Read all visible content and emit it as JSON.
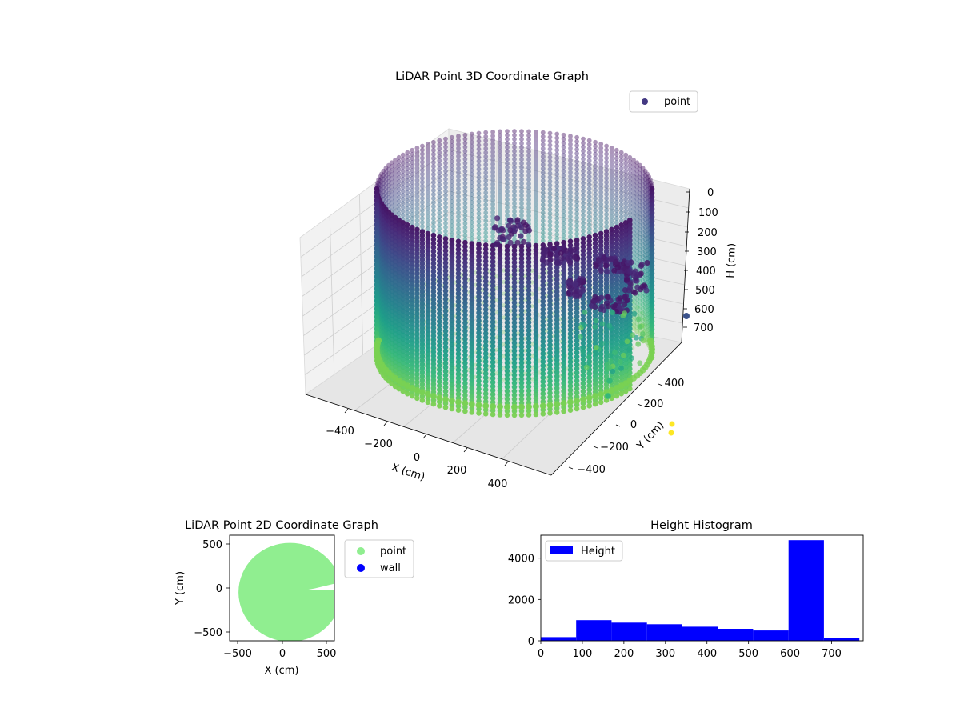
{
  "figure": {
    "chart_3d": {
      "title": "LiDAR Point 3D Coordinate Graph",
      "legend": [
        "point"
      ],
      "xlabel": "X (cm)",
      "ylabel": "Y (cm)",
      "zlabel": "H (cm)"
    },
    "chart_2d": {
      "title": "LiDAR Point 2D Coordinate Graph",
      "legend": [
        "point",
        "wall"
      ],
      "xlabel": "X (cm)",
      "ylabel": "Y (cm)"
    },
    "histogram": {
      "title": "Height Histogram",
      "legend": [
        "Height"
      ]
    }
  },
  "chart_data": [
    {
      "type": "scatter",
      "projection": "3d",
      "title": "LiDAR Point 3D Coordinate Graph",
      "xlabel": "X (cm)",
      "ylabel": "Y (cm)",
      "zlabel": "H (cm)",
      "series": [
        {
          "name": "point",
          "shape": "cylindrical wall of points with floor disk and obstacle cluster",
          "radius": 580,
          "height_range": [
            0,
            760
          ]
        }
      ],
      "xlim": [
        -580,
        580
      ],
      "ylim": [
        -580,
        580
      ],
      "zlim": [
        0,
        760
      ],
      "z_inverted": true,
      "xticks": [
        "−400",
        "−200",
        "0",
        "200",
        "400"
      ],
      "yticks": [
        "−400",
        "−200",
        "0",
        "200",
        "400"
      ],
      "zticks": [
        "0",
        "100",
        "200",
        "300",
        "400",
        "500",
        "600",
        "700"
      ],
      "colormap": "viridis",
      "legend_position": "upper-right",
      "grid": true
    },
    {
      "type": "scatter",
      "title": "LiDAR Point 2D Coordinate Graph",
      "xlabel": "X (cm)",
      "ylabel": "Y (cm)",
      "xlim": [
        -580,
        600
      ],
      "ylim": [
        -620,
        620
      ],
      "xticks": [
        "−500",
        "0",
        "500"
      ],
      "yticks": [
        "−500",
        "0",
        "500"
      ],
      "series": [
        {
          "name": "point",
          "color": "#90ee90",
          "shape": "filled disk",
          "center": [
            100,
            -50
          ],
          "radius": 580
        },
        {
          "name": "wall",
          "color": "#0000ff",
          "count": 0
        }
      ],
      "legend_position": "outside-right",
      "grid": false
    },
    {
      "type": "bar",
      "title": "Height Histogram",
      "series": [
        {
          "name": "Height",
          "color": "#0000ff",
          "bin_edges": [
            0,
            85.2,
            170.4,
            255.6,
            340.8,
            426.0,
            511.2,
            596.4,
            681.6,
            766.8
          ],
          "values": [
            180,
            1000,
            880,
            800,
            680,
            580,
            500,
            4870,
            130
          ]
        }
      ],
      "xlim": [
        0,
        776
      ],
      "ylim": [
        0,
        5110
      ],
      "xticks": [
        "0",
        "100",
        "200",
        "300",
        "400",
        "500",
        "600",
        "700"
      ],
      "yticks": [
        "0",
        "2000",
        "4000"
      ],
      "legend_position": "upper-left",
      "grid": false
    }
  ]
}
